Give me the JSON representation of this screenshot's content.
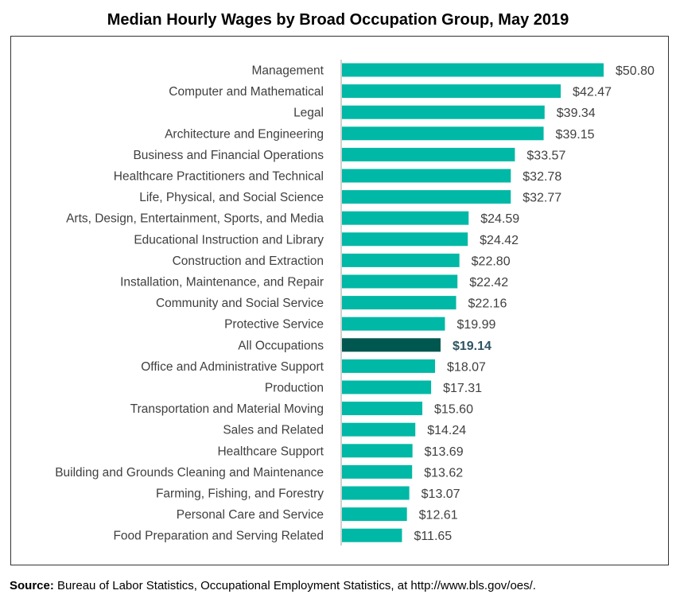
{
  "chart_data": {
    "type": "bar",
    "orientation": "horizontal",
    "title": "Median Hourly Wages by Broad Occupation Group, May 2019",
    "categories": [
      "Management",
      "Computer and Mathematical",
      "Legal",
      "Architecture and Engineering",
      "Business and Financial Operations",
      "Healthcare Practitioners and Technical",
      "Life, Physical, and Social Science",
      "Arts, Design, Entertainment, Sports, and Media",
      "Educational Instruction and Library",
      "Construction and Extraction",
      "Installation, Maintenance, and Repair",
      "Community and Social Service",
      "Protective Service",
      "All Occupations",
      "Office and Administrative Support",
      "Production",
      "Transportation and Material Moving",
      "Sales and Related",
      "Healthcare Support",
      "Building and Grounds Cleaning and Maintenance",
      "Farming, Fishing, and Forestry",
      "Personal Care and Service",
      "Food Preparation and Serving Related"
    ],
    "values": [
      50.8,
      42.47,
      39.34,
      39.15,
      33.57,
      32.78,
      32.77,
      24.59,
      24.42,
      22.8,
      22.42,
      22.16,
      19.99,
      19.14,
      18.07,
      17.31,
      15.6,
      14.24,
      13.69,
      13.62,
      13.07,
      12.61,
      11.65
    ],
    "data_labels": [
      "$50.80",
      "$42.47",
      "$39.34",
      "$39.15",
      "$33.57",
      "$32.78",
      "$32.77",
      "$24.59",
      "$24.42",
      "$22.80",
      "$22.42",
      "$22.16",
      "$19.99",
      "$19.14",
      "$18.07",
      "$17.31",
      "$15.60",
      "$14.24",
      "$13.69",
      "$13.62",
      "$13.07",
      "$12.61",
      "$11.65"
    ],
    "highlight": "All Occupations",
    "xlim": [
      0,
      50.8
    ],
    "grid": false,
    "colors": {
      "bar": "#00b8a6",
      "highlight_bar": "#00574f",
      "highlight_label": "#2e5361",
      "label": "#404040"
    }
  },
  "source": {
    "label": "Source:",
    "text": " Bureau of Labor Statistics, Occupational Employment Statistics, at http://www.bls.gov/oes/."
  }
}
